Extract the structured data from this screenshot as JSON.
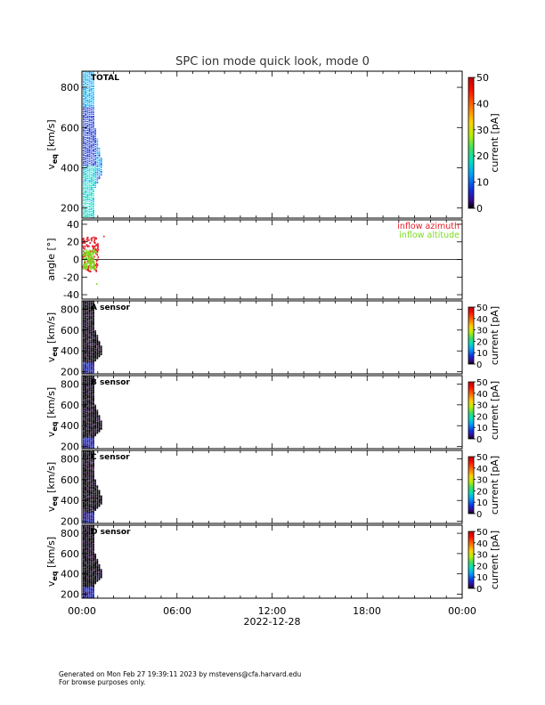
{
  "title": "SPC ion mode quick look, mode 0",
  "footer": {
    "line1": "Generated on Mon Feb 27 19:39:11 2023 by mstevens@cfa.harvard.edu",
    "line2": "For browse purposes only."
  },
  "time_axis": {
    "tick_labels": [
      "00:00",
      "06:00",
      "12:00",
      "18:00",
      "00:00"
    ],
    "date_label": "2022-12-28",
    "hours_range": [
      0,
      24
    ]
  },
  "colors": {
    "azimuth": "#e8202a",
    "altitude": "#7cdc1e"
  },
  "chart_data": [
    {
      "type": "heatmap",
      "label": "TOTAL",
      "ylabel_main": "v",
      "ylabel_sub": "eq",
      "ylabel_unit": "[km/s]",
      "ylim": [
        150,
        880
      ],
      "y_ticks": [
        200,
        400,
        600,
        800
      ],
      "colorbar": {
        "label": "current [pA]",
        "range": [
          0,
          50
        ],
        "ticks": [
          0,
          10,
          20,
          30,
          40,
          50
        ]
      },
      "coverage_hours": [
        0.0,
        1.3
      ]
    },
    {
      "type": "scatter",
      "ylabel": "angle [°]",
      "ylim": [
        -45,
        45
      ],
      "y_ticks": [
        -40,
        -20,
        0,
        20,
        40
      ],
      "zero_line": true,
      "series": [
        {
          "name": "inflow azimuth",
          "color": "#e8202a"
        },
        {
          "name": "inflow altitude",
          "color": "#7cdc1e"
        }
      ]
    },
    {
      "type": "heatmap",
      "label": "A sensor",
      "ylabel_main": "v",
      "ylabel_sub": "eq",
      "ylabel_unit": "[km/s]",
      "ylim": [
        180,
        880
      ],
      "y_ticks": [
        200,
        400,
        600,
        800
      ],
      "colorbar": {
        "label": "current [pA]",
        "range": [
          0,
          50
        ],
        "ticks": [
          0,
          10,
          20,
          30,
          40,
          50
        ]
      }
    },
    {
      "type": "heatmap",
      "label": "B sensor",
      "ylabel_main": "v",
      "ylabel_sub": "eq",
      "ylabel_unit": "[km/s]",
      "ylim": [
        180,
        880
      ],
      "y_ticks": [
        200,
        400,
        600,
        800
      ],
      "colorbar": {
        "label": "current [pA]",
        "range": [
          0,
          50
        ],
        "ticks": [
          0,
          10,
          20,
          30,
          40,
          50
        ]
      }
    },
    {
      "type": "heatmap",
      "label": "C sensor",
      "ylabel_main": "v",
      "ylabel_sub": "eq",
      "ylabel_unit": "[km/s]",
      "ylim": [
        180,
        880
      ],
      "y_ticks": [
        200,
        400,
        600,
        800
      ],
      "colorbar": {
        "label": "current [pA]",
        "range": [
          0,
          50
        ],
        "ticks": [
          0,
          10,
          20,
          30,
          40,
          50
        ]
      }
    },
    {
      "type": "heatmap",
      "label": "D sensor",
      "ylabel_main": "v",
      "ylabel_sub": "eq",
      "ylabel_unit": "[km/s]",
      "ylim": [
        160,
        880
      ],
      "y_ticks": [
        200,
        400,
        600,
        800
      ],
      "colorbar": {
        "label": "current [pA]",
        "range": [
          0,
          50
        ],
        "ticks": [
          0,
          10,
          20,
          30,
          40,
          50
        ]
      }
    }
  ]
}
